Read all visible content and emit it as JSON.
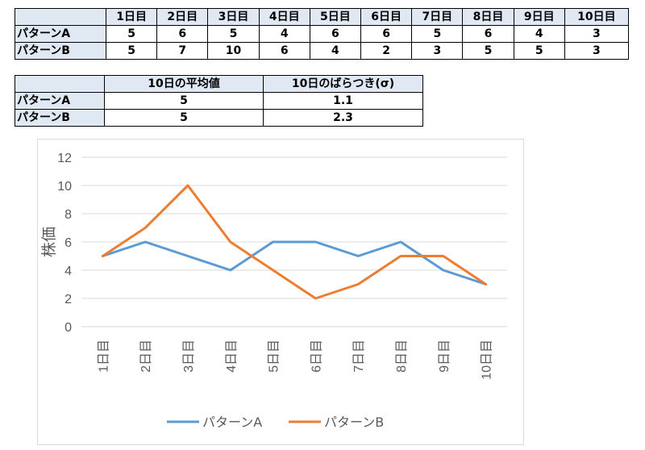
{
  "table1": {
    "header": [
      "",
      "1日目",
      "2日目",
      "3日目",
      "4日目",
      "5日目",
      "6日目",
      "7日目",
      "8日目",
      "9日目",
      "10日目"
    ],
    "rows": [
      {
        "label": "パターンA",
        "values": [
          "5",
          "6",
          "5",
          "4",
          "6",
          "6",
          "5",
          "6",
          "4",
          "3"
        ]
      },
      {
        "label": "パターンB",
        "values": [
          "5",
          "7",
          "10",
          "6",
          "4",
          "2",
          "3",
          "5",
          "5",
          "3"
        ]
      }
    ]
  },
  "table2": {
    "header": [
      "",
      "10日の平均値",
      "10日のばらつき(σ)"
    ],
    "rows": [
      {
        "label": "パターンA",
        "mean": "5",
        "sd": "1.1"
      },
      {
        "label": "パターンB",
        "mean": "5",
        "sd": "2.3"
      }
    ]
  },
  "colors": {
    "header_bg": "#dfe8f3",
    "series_a": "#5b9bd5",
    "series_b": "#ed7d31",
    "grid": "#d9d9d9",
    "text": "#595959"
  },
  "chart_data": {
    "type": "line",
    "categories": [
      "1日目",
      "2日目",
      "3日目",
      "4日目",
      "5日目",
      "6日目",
      "7日目",
      "8日目",
      "9日目",
      "10日目"
    ],
    "series": [
      {
        "name": "パターンA",
        "values": [
          5,
          6,
          5,
          4,
          6,
          6,
          5,
          6,
          4,
          3
        ]
      },
      {
        "name": "パターンB",
        "values": [
          5,
          7,
          10,
          6,
          4,
          2,
          3,
          5,
          5,
          3
        ]
      }
    ],
    "ylabel": "株価",
    "ylim": [
      0,
      12
    ],
    "yticks": [
      0,
      2,
      4,
      6,
      8,
      10,
      12
    ],
    "grid": true,
    "legend": "bottom"
  }
}
